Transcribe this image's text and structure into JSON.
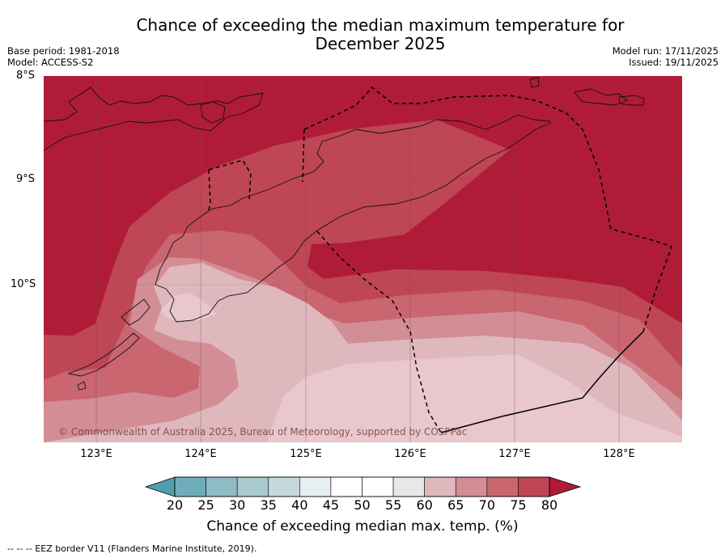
{
  "title_line1": "Chance of exceeding the median maximum temperature for",
  "title_line2": "December 2025",
  "base_period": "Base period: 1981-2018",
  "model": "Model: ACCESS-S2",
  "model_run": "Model run: 17/11/2025",
  "issued": "Issued: 19/11/2025",
  "lat_labels": [
    "8°S",
    "9°S",
    "10°S"
  ],
  "lon_labels": [
    "123°E",
    "124°E",
    "125°E",
    "126°E",
    "127°E",
    "128°E"
  ],
  "copyright": "© Commonwealth of Australia 2025, Bureau of Meteorology, supported by COSPPac",
  "colorbar": {
    "ticks": [
      "20",
      "25",
      "30",
      "35",
      "40",
      "45",
      "50",
      "55",
      "60",
      "65",
      "70",
      "75",
      "80"
    ],
    "colors": [
      "#4f9fae",
      "#70adbb",
      "#8fbcc5",
      "#a8c9cd",
      "#c5d9dc",
      "#e8eff0",
      "#ffffff",
      "#ffffff",
      "#e8e8e8",
      "#dfb8bd",
      "#d38d95",
      "#c96670",
      "#bf4654",
      "#b01c38"
    ],
    "label": "Chance of exceeding median max. temp. (%)"
  },
  "footnote": "--  --  -- EEZ border V11 (Flanders Marine Institute, 2019).",
  "map_colors": {
    "c80": "#b01c38",
    "c75": "#bf4654",
    "c70": "#c96670",
    "c65": "#d38d95",
    "c60": "#dfb8bd",
    "c55": "#e8c8cc"
  }
}
